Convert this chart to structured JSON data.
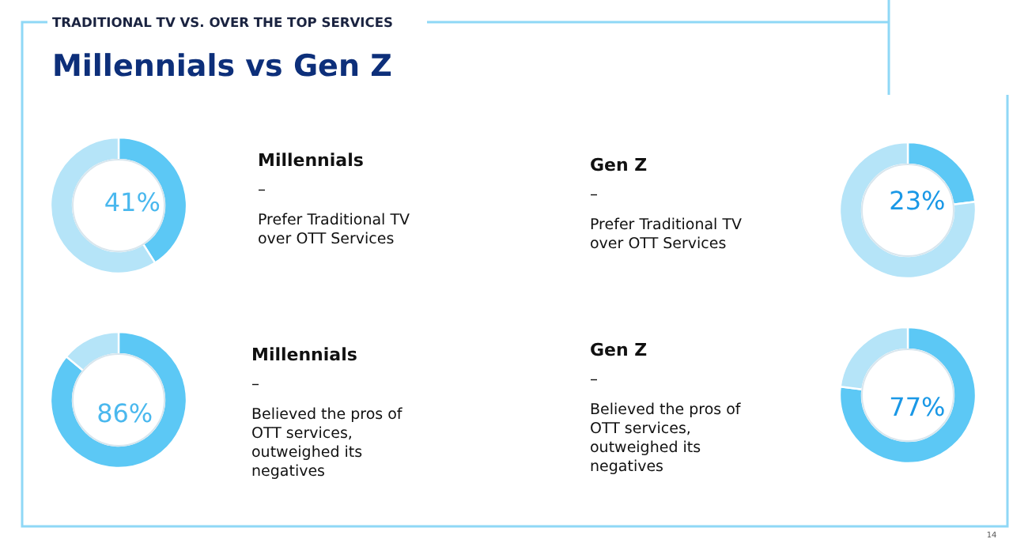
{
  "chart_data": [
    {
      "type": "other",
      "title": "Millennials vs Gen Z",
      "subtitle": "TRADITIONAL TV VS. OVER THE TOP SERVICES",
      "annotations": [
        "14"
      ]
    },
    {
      "type": "donut",
      "title": "Millennials",
      "subtitle": "Prefer Traditional TV over OTT Services",
      "annotations": [
        "–"
      ],
      "categories": [
        null,
        null
      ],
      "values": [
        41,
        59
      ],
      "colors": [
        "#5cc8f5",
        "#b5e4f8"
      ],
      "value_labels": [
        "41%",
        null
      ]
    },
    {
      "type": "donut",
      "title": "Gen Z",
      "subtitle": "Prefer Traditional TV over OTT Services",
      "annotations": [
        "–"
      ],
      "categories": [
        null,
        null
      ],
      "values": [
        23,
        77
      ],
      "colors": [
        "#5cc8f5",
        "#b5e4f8"
      ],
      "value_labels": [
        "23%",
        null
      ]
    },
    {
      "type": "donut",
      "title": "Millennials",
      "subtitle": "Believed the pros of OTT services, outweighed its negatives",
      "annotations": [
        "–"
      ],
      "categories": [
        null,
        null
      ],
      "values": [
        86,
        14
      ],
      "colors": [
        "#5cc8f5",
        "#b5e4f8"
      ],
      "value_labels": [
        "86%",
        null
      ]
    },
    {
      "type": "donut",
      "title": "Gen Z",
      "subtitle": "Believed the pros of OTT services, outweighed its negatives",
      "annotations": [
        "–"
      ],
      "categories": [
        null,
        null
      ],
      "values": [
        77,
        23
      ],
      "colors": [
        "#5cc8f5",
        "#b5e4f8"
      ],
      "value_labels": [
        "77%",
        null
      ]
    }
  ]
}
